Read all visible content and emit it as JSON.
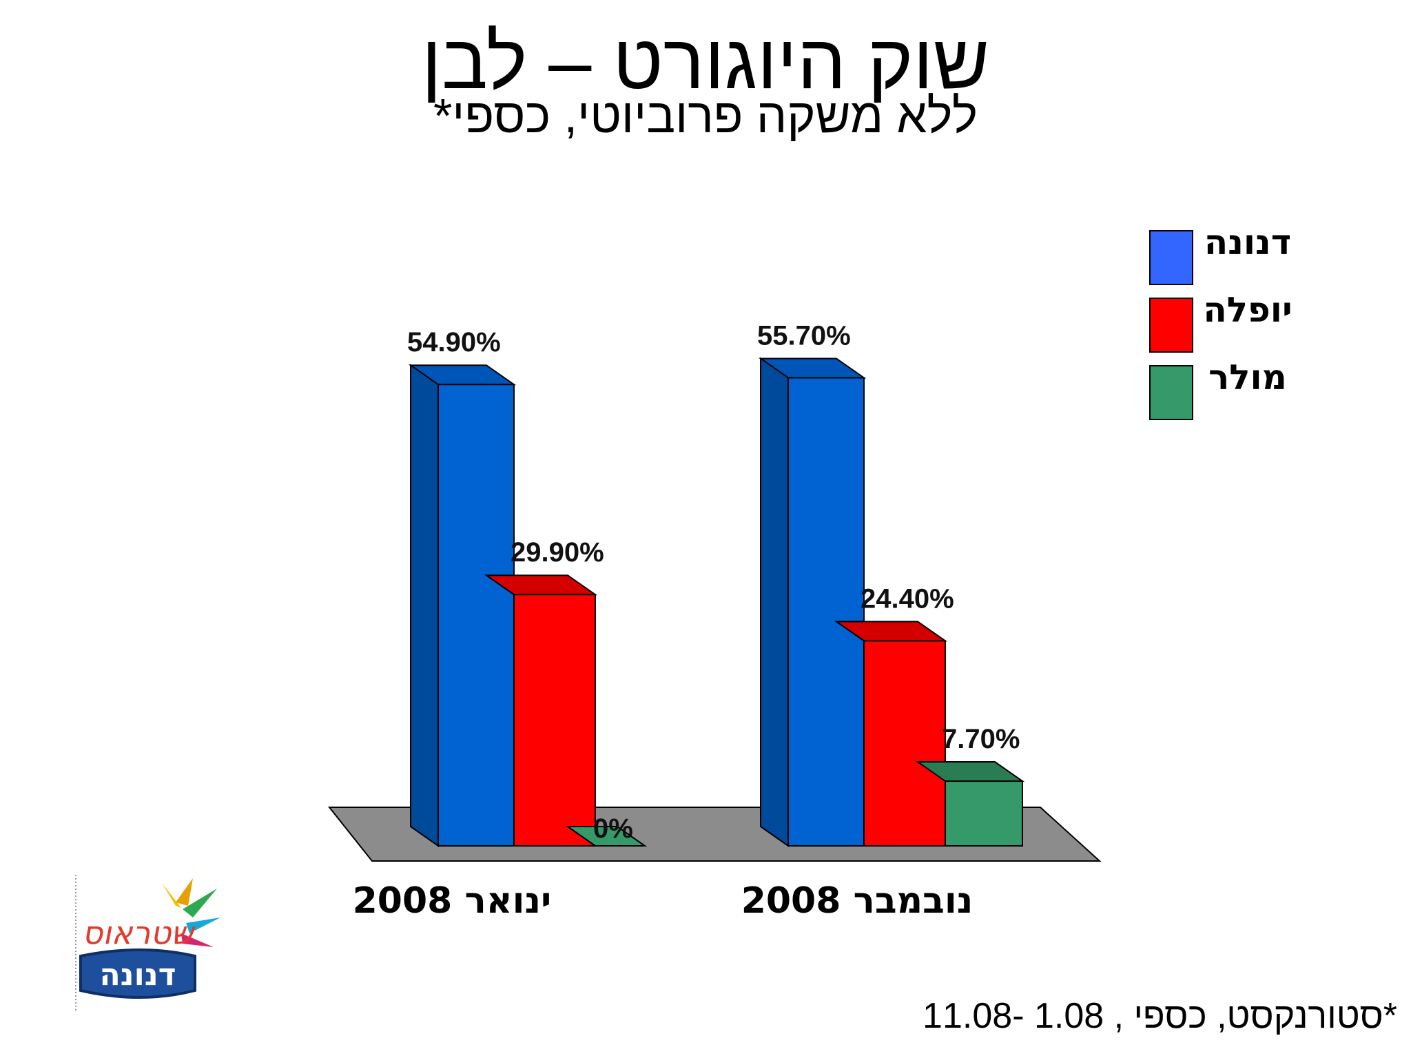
{
  "title": "שוק היוגורט – לבן",
  "subtitle": "ללא משקה פרוביוטי, כספי*",
  "footnote": "*סטורנקסט, כספי , 1.08 -11.08",
  "logo": {
    "text": "דנונה",
    "script_text": "שטראוס"
  },
  "colors": {
    "danone_front": "#0063d1",
    "danone_side": "#004a9c",
    "danone_top": "#0055b8",
    "yoplait_front": "#ff0000",
    "yoplait_side": "#c20000",
    "yoplait_top": "#d40000",
    "muller_front": "#35996a",
    "muller_side": "#247048",
    "muller_top": "#2a7d52",
    "floor": "#8c8c8c"
  },
  "chart_data": {
    "type": "bar",
    "categories": [
      "ינואר 2008",
      "נובמבר 2008"
    ],
    "series": [
      {
        "name": "דנונה",
        "values": [
          54.9,
          55.7
        ],
        "labels": [
          "54.90%",
          "55.70%"
        ]
      },
      {
        "name": "יופלה",
        "values": [
          29.9,
          24.4
        ],
        "labels": [
          "29.90%",
          "24.40%"
        ]
      },
      {
        "name": "מולר",
        "values": [
          0,
          7.7
        ],
        "labels": [
          "0%",
          "7.70%"
        ]
      }
    ],
    "legend_position": "right",
    "grid": false
  },
  "legend": [
    {
      "label": "דנונה",
      "color": "#3366ff"
    },
    {
      "label": "יופלה",
      "color": "#ff0000"
    },
    {
      "label": "מולר",
      "color": "#35996a"
    }
  ]
}
